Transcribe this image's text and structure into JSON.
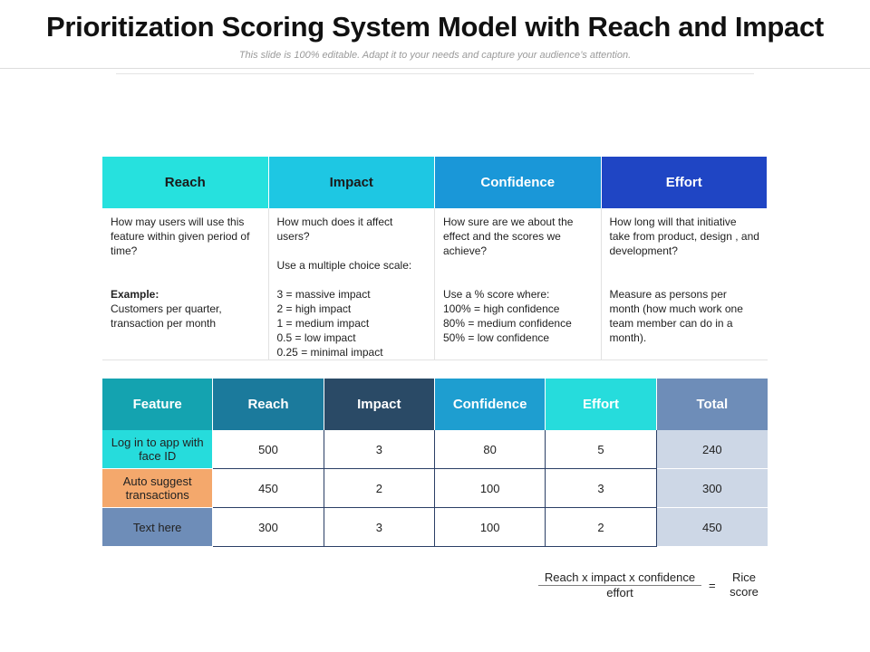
{
  "title": "Prioritization Scoring System Model with Reach and Impact",
  "subtitle": "This slide is 100% editable. Adapt it to your needs and capture your audience’s attention.",
  "criteria": [
    {
      "header": "Reach",
      "header_bg": "#26e1de",
      "header_color": "#1a1a1a",
      "question": "How may users will use this feature within given period of time?",
      "example_title": "Example:",
      "lower_lines": [
        "Customers per quarter, transaction per month"
      ]
    },
    {
      "header": "Impact",
      "header_bg": "#1ec7e3",
      "header_color": "#1a1a1a",
      "question": "How much does it affect users?",
      "extra": "Use a multiple choice scale:",
      "lower_lines": [
        "3 = massive impact",
        "2 = high impact",
        "1 = medium impact",
        "0.5 = low impact",
        "0.25 = minimal impact"
      ]
    },
    {
      "header": "Confidence",
      "header_bg": "#1a97d8",
      "header_color": "#ffffff",
      "question": "How sure are we about the effect and the scores we achieve?",
      "lower_lines": [
        "Use a % score where:",
        "100% = high confidence",
        "80% = medium confidence",
        "50% = low confidence"
      ]
    },
    {
      "header": "Effort",
      "header_bg": "#1f45c4",
      "header_color": "#ffffff",
      "question": "How long will that initiative take from product, design , and development?",
      "lower_lines": [
        "Measure as persons per month (how much work one team member can do in a month)."
      ]
    }
  ],
  "scoring": {
    "headers": [
      {
        "label": "Feature",
        "bg": "#14a3b0"
      },
      {
        "label": "Reach",
        "bg": "#1b7a9c"
      },
      {
        "label": "Impact",
        "bg": "#2a4a66"
      },
      {
        "label": "Confidence",
        "bg": "#1e9ed0"
      },
      {
        "label": "Effort",
        "bg": "#26dcdc"
      },
      {
        "label": "Total",
        "bg": "#6e8db8"
      }
    ],
    "rows": [
      {
        "feature": "Log in to app with face ID",
        "feature_bg": "#26dcdc",
        "reach": "500",
        "impact": "3",
        "confidence": "80",
        "effort": "5",
        "total": "240"
      },
      {
        "feature": "Auto suggest transactions",
        "feature_bg": "#f4a86c",
        "reach": "450",
        "impact": "2",
        "confidence": "100",
        "effort": "3",
        "total": "300"
      },
      {
        "feature": "Text here",
        "feature_bg": "#6e8db8",
        "reach": "300",
        "impact": "3",
        "confidence": "100",
        "effort": "2",
        "total": "450"
      }
    ]
  },
  "formula": {
    "numerator": "Reach x impact x confidence",
    "denominator": "effort",
    "equals": "=",
    "result": "Rice score"
  }
}
